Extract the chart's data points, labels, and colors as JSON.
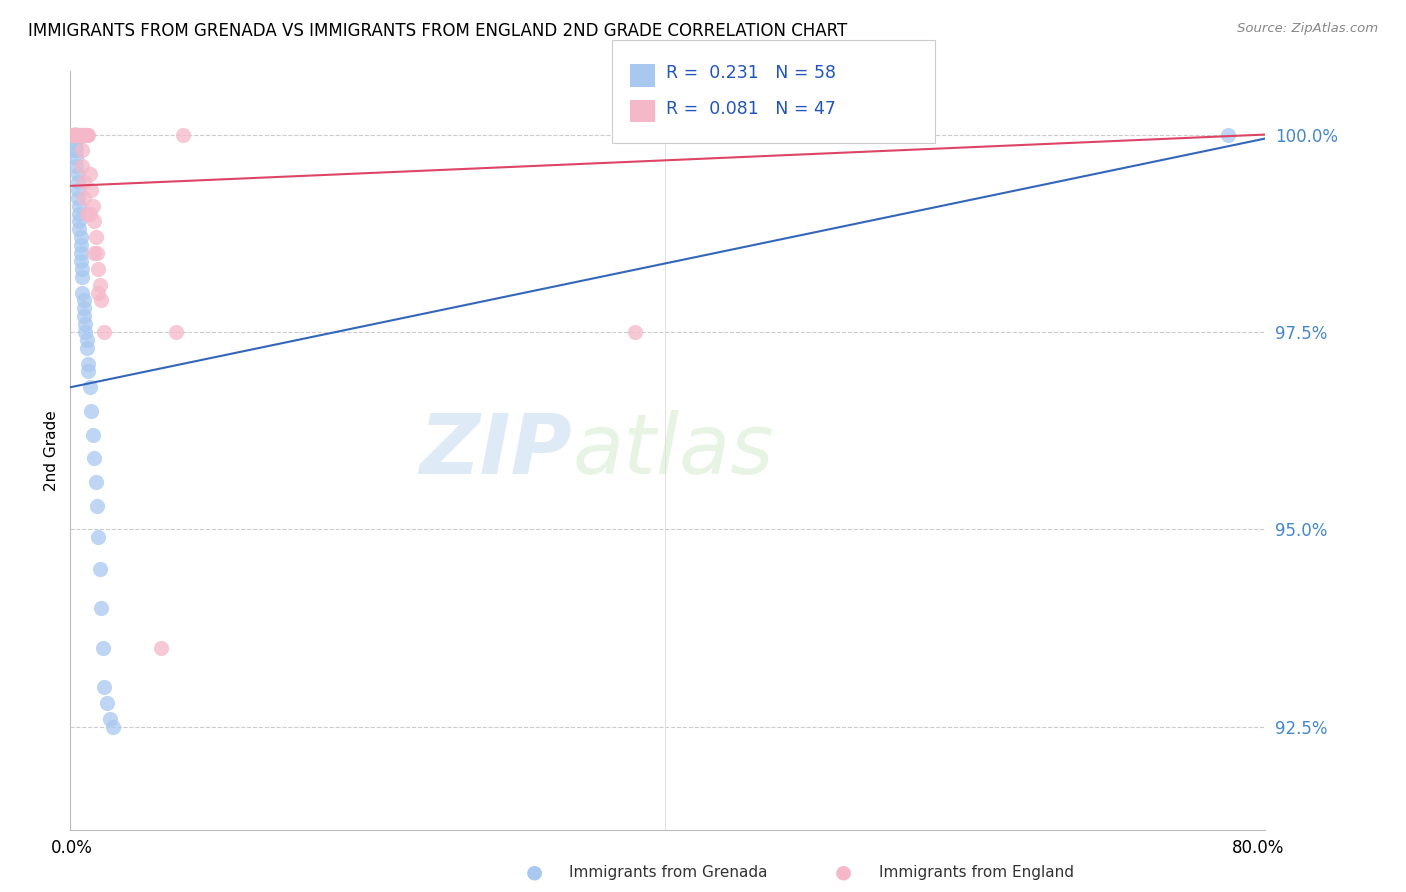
{
  "title": "IMMIGRANTS FROM GRENADA VS IMMIGRANTS FROM ENGLAND 2ND GRADE CORRELATION CHART",
  "source": "Source: ZipAtlas.com",
  "ylabel": "2nd Grade",
  "y_ticks": [
    92.5,
    95.0,
    97.5,
    100.0
  ],
  "y_tick_labels": [
    "92.5%",
    "95.0%",
    "97.5%",
    "100.0%"
  ],
  "ymin": 91.2,
  "ymax": 100.8,
  "xmin": -0.001,
  "xmax": 0.805,
  "blue_label": "Immigrants from Grenada",
  "pink_label": "Immigrants from England",
  "blue_R": "0.231",
  "blue_N": "58",
  "pink_R": "0.081",
  "pink_N": "47",
  "blue_color": "#A8C8F0",
  "pink_color": "#F5B8C8",
  "blue_edge_color": "#5588CC",
  "pink_edge_color": "#E06080",
  "blue_line_color": "#3366BB",
  "pink_line_color": "#DD4466",
  "watermark_zip": "ZIP",
  "watermark_atlas": "atlas",
  "blue_scatter_x": [
    0.001,
    0.001,
    0.002,
    0.002,
    0.002,
    0.002,
    0.002,
    0.003,
    0.003,
    0.003,
    0.003,
    0.003,
    0.004,
    0.004,
    0.004,
    0.004,
    0.005,
    0.005,
    0.005,
    0.005,
    0.006,
    0.006,
    0.006,
    0.006,
    0.007,
    0.007,
    0.007,
    0.008,
    0.008,
    0.008,
    0.009,
    0.009,
    0.01,
    0.01,
    0.011,
    0.011,
    0.012,
    0.013,
    0.014,
    0.015,
    0.016,
    0.017,
    0.018,
    0.019,
    0.02,
    0.021,
    0.022,
    0.024,
    0.026,
    0.028,
    0.001,
    0.001,
    0.001,
    0.002,
    0.002,
    0.003,
    0.003,
    0.78
  ],
  "blue_scatter_y": [
    100.0,
    100.0,
    100.0,
    100.0,
    99.9,
    99.8,
    100.0,
    99.9,
    99.8,
    99.7,
    99.6,
    100.0,
    99.5,
    99.4,
    99.3,
    99.2,
    99.1,
    99.0,
    98.9,
    98.8,
    98.7,
    98.6,
    98.5,
    98.4,
    98.3,
    98.2,
    98.0,
    97.9,
    97.8,
    97.7,
    97.6,
    97.5,
    97.4,
    97.3,
    97.1,
    97.0,
    96.8,
    96.5,
    96.2,
    95.9,
    95.6,
    95.3,
    94.9,
    94.5,
    94.0,
    93.5,
    93.0,
    92.8,
    92.6,
    92.5,
    100.0,
    100.0,
    100.0,
    100.0,
    100.0,
    100.0,
    100.0,
    100.0
  ],
  "pink_scatter_x": [
    0.001,
    0.001,
    0.002,
    0.002,
    0.003,
    0.003,
    0.003,
    0.004,
    0.004,
    0.005,
    0.005,
    0.006,
    0.006,
    0.007,
    0.007,
    0.008,
    0.008,
    0.009,
    0.01,
    0.01,
    0.011,
    0.012,
    0.013,
    0.014,
    0.015,
    0.016,
    0.017,
    0.018,
    0.019,
    0.02,
    0.002,
    0.003,
    0.004,
    0.005,
    0.006,
    0.007,
    0.008,
    0.009,
    0.01,
    0.012,
    0.015,
    0.018,
    0.022,
    0.06,
    0.07,
    0.075,
    0.38
  ],
  "pink_scatter_y": [
    100.0,
    100.0,
    100.0,
    100.0,
    100.0,
    100.0,
    100.0,
    100.0,
    100.0,
    100.0,
    100.0,
    100.0,
    100.0,
    99.8,
    99.6,
    99.4,
    99.2,
    100.0,
    99.0,
    100.0,
    100.0,
    99.5,
    99.3,
    99.1,
    98.9,
    98.7,
    98.5,
    98.3,
    98.1,
    97.9,
    100.0,
    100.0,
    100.0,
    100.0,
    100.0,
    100.0,
    100.0,
    100.0,
    100.0,
    99.0,
    98.5,
    98.0,
    97.5,
    93.5,
    97.5,
    100.0,
    97.5
  ],
  "blue_trend_x0": -0.001,
  "blue_trend_x1": 0.805,
  "blue_trend_y0": 96.8,
  "blue_trend_y1": 99.95,
  "pink_trend_x0": -0.001,
  "pink_trend_x1": 0.805,
  "pink_trend_y0": 99.35,
  "pink_trend_y1": 100.0
}
